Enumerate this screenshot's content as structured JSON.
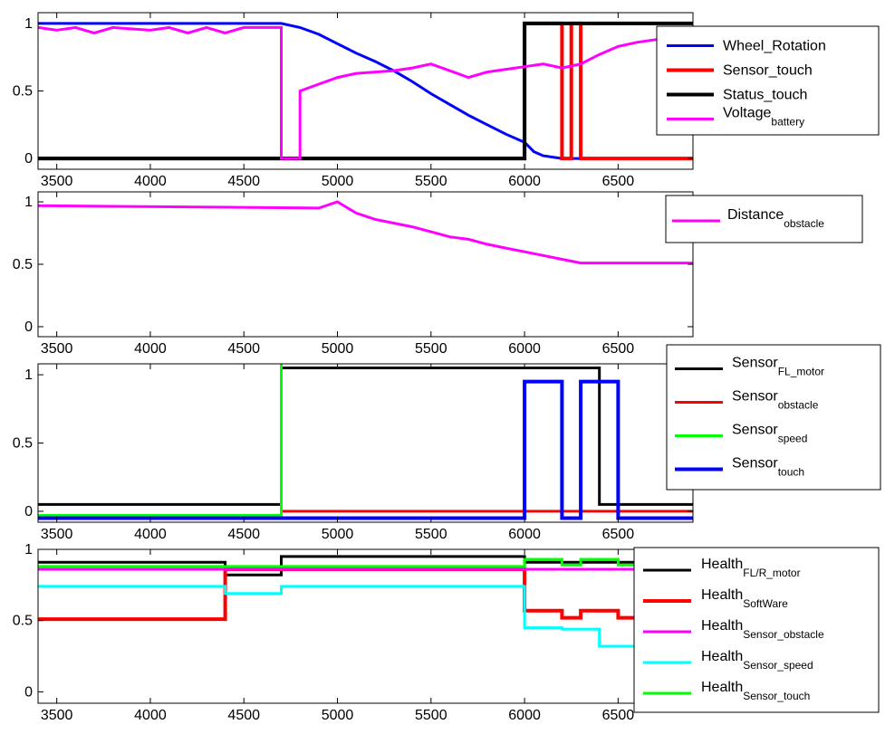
{
  "chart_data": [
    {
      "type": "line",
      "xlim": [
        3400,
        6900
      ],
      "ylim": [
        -0.08,
        1.08
      ],
      "xticks": [
        3500,
        4000,
        4500,
        5000,
        5500,
        6000,
        6500
      ],
      "xtick_labels": [
        "3500",
        "4000",
        "4500",
        "5000",
        "5500",
        "6000",
        "6500"
      ],
      "yticks": [
        0,
        0.5,
        1
      ],
      "ytick_labels": [
        "0",
        "0.5",
        "1"
      ],
      "legend_position": "top-right",
      "series": [
        {
          "name": "Wheel_Rotation",
          "label_main": "Wheel_Rotation",
          "label_sub": "",
          "color": "#0000ff",
          "width": "medium",
          "x": [
            3400,
            4700,
            4800,
            4900,
            5000,
            5100,
            5200,
            5300,
            5400,
            5500,
            5600,
            5700,
            5800,
            5900,
            6000,
            6050,
            6100,
            6200,
            6900
          ],
          "y": [
            1.0,
            1.0,
            0.97,
            0.92,
            0.85,
            0.78,
            0.72,
            0.65,
            0.57,
            0.48,
            0.4,
            0.32,
            0.25,
            0.18,
            0.12,
            0.05,
            0.02,
            0.0,
            0.0
          ]
        },
        {
          "name": "Sensor_touch",
          "label_main": "Sensor_touch",
          "label_sub": "",
          "color": "#ff0000",
          "width": "thick",
          "x": [
            3400,
            6000,
            6000,
            6200,
            6200,
            6250,
            6250,
            6300,
            6300,
            6500,
            6500,
            6900
          ],
          "y": [
            0,
            0,
            1,
            1,
            0,
            0,
            1,
            1,
            0,
            0,
            0,
            0
          ]
        },
        {
          "name": "Status_touch",
          "label_main": "Status_touch",
          "label_sub": "",
          "color": "#000000",
          "width": "thick",
          "x": [
            3400,
            6000,
            6000,
            6900
          ],
          "y": [
            0,
            0,
            1,
            1
          ]
        },
        {
          "name": "Voltage_battery",
          "label_main": "Voltage",
          "label_sub": "battery",
          "color": "#ff00ff",
          "width": "medium",
          "x": [
            3400,
            3500,
            3600,
            3700,
            3800,
            4000,
            4100,
            4200,
            4300,
            4400,
            4500,
            4600,
            4700,
            4700,
            4800,
            4800,
            4900,
            5000,
            5100,
            5200,
            5300,
            5400,
            5500,
            5600,
            5700,
            5800,
            5900,
            6000,
            6100,
            6200,
            6300,
            6400,
            6500,
            6600,
            6700,
            6800,
            6900
          ],
          "y": [
            0.97,
            0.95,
            0.97,
            0.93,
            0.97,
            0.95,
            0.97,
            0.93,
            0.97,
            0.93,
            0.97,
            0.97,
            0.97,
            0.0,
            0.0,
            0.5,
            0.55,
            0.6,
            0.63,
            0.64,
            0.65,
            0.67,
            0.7,
            0.65,
            0.6,
            0.64,
            0.66,
            0.68,
            0.7,
            0.67,
            0.7,
            0.77,
            0.83,
            0.86,
            0.88,
            0.9,
            0.9
          ]
        }
      ]
    },
    {
      "type": "line",
      "xlim": [
        3400,
        6900
      ],
      "ylim": [
        -0.08,
        1.08
      ],
      "xticks": [
        3500,
        4000,
        4500,
        5000,
        5500,
        6000,
        6500
      ],
      "xtick_labels": [
        "3500",
        "4000",
        "4500",
        "5000",
        "5500",
        "6000",
        "6500"
      ],
      "yticks": [
        0,
        0.5,
        1
      ],
      "ytick_labels": [
        "0",
        "0.5",
        "1"
      ],
      "legend_position": "top-right",
      "series": [
        {
          "name": "Distance_obstacle",
          "label_main": "Distance",
          "label_sub": "obstacle",
          "color": "#ff00ff",
          "width": "medium",
          "x": [
            3400,
            4900,
            5000,
            5100,
            5200,
            5300,
            5400,
            5500,
            5600,
            5700,
            5800,
            5900,
            6000,
            6100,
            6200,
            6300,
            6900
          ],
          "y": [
            0.97,
            0.95,
            1.0,
            0.91,
            0.86,
            0.83,
            0.8,
            0.76,
            0.72,
            0.7,
            0.66,
            0.63,
            0.6,
            0.57,
            0.54,
            0.51,
            0.51
          ]
        }
      ]
    },
    {
      "type": "line",
      "xlim": [
        3400,
        6900
      ],
      "ylim": [
        -0.08,
        1.08
      ],
      "xticks": [
        3500,
        4000,
        4500,
        5000,
        5500,
        6000,
        6500
      ],
      "xtick_labels": [
        "3500",
        "4000",
        "4500",
        "5000",
        "5500",
        "6000",
        "6500"
      ],
      "yticks": [
        0,
        0.5,
        1
      ],
      "ytick_labels": [
        "0",
        "0.5",
        "1"
      ],
      "legend_position": "top-right",
      "series": [
        {
          "name": "Sensor_FL_motor",
          "label_main": "Sensor",
          "label_sub": "FL_motor",
          "color": "#000000",
          "width": "medium",
          "x": [
            3400,
            4700,
            4700,
            6400,
            6400,
            6900
          ],
          "y": [
            0.05,
            0.05,
            1.05,
            1.05,
            0.05,
            0.05
          ]
        },
        {
          "name": "Sensor_obstacle",
          "label_main": "Sensor",
          "label_sub": "obstacle",
          "color": "#ff0000",
          "width": "medium",
          "x": [
            3400,
            4700,
            4700,
            6900
          ],
          "y": [
            -0.03,
            -0.03,
            0.0,
            0.0
          ]
        },
        {
          "name": "Sensor_speed",
          "label_main": "Sensor",
          "label_sub": "speed",
          "color": "#00ff00",
          "width": "medium",
          "x": [
            3400,
            4700,
            4700
          ],
          "y": [
            -0.03,
            -0.03,
            1.08
          ]
        },
        {
          "name": "Sensor_touch",
          "label_main": "Sensor",
          "label_sub": "touch",
          "color": "#0000ff",
          "width": "thick",
          "x": [
            3400,
            6000,
            6000,
            6200,
            6200,
            6300,
            6300,
            6500,
            6500,
            6900
          ],
          "y": [
            -0.05,
            -0.05,
            0.95,
            0.95,
            -0.05,
            -0.05,
            0.95,
            0.95,
            -0.05,
            -0.05
          ]
        }
      ]
    },
    {
      "type": "line",
      "xlim": [
        3400,
        6900
      ],
      "ylim": [
        -0.08,
        1.0
      ],
      "xticks": [
        3500,
        4000,
        4500,
        5000,
        5500,
        6000,
        6500
      ],
      "xtick_labels": [
        "3500",
        "4000",
        "4500",
        "5000",
        "5500",
        "6000",
        "6500"
      ],
      "yticks": [
        0,
        0.5,
        1
      ],
      "ytick_labels": [
        "0",
        "0.5",
        "1"
      ],
      "legend_position": "top-right",
      "series": [
        {
          "name": "Health_FL/R_motor",
          "label_main": "Health",
          "label_sub": "FL/R_motor",
          "color": "#000000",
          "width": "medium",
          "x": [
            3400,
            4400,
            4400,
            4700,
            4700,
            6000,
            6000,
            6900
          ],
          "y": [
            0.91,
            0.91,
            0.82,
            0.82,
            0.95,
            0.95,
            0.91,
            0.91
          ]
        },
        {
          "name": "Health_SoftWare",
          "label_main": "Health",
          "label_sub": "SoftWare",
          "color": "#ff0000",
          "width": "thick",
          "x": [
            3400,
            4400,
            4400,
            6000,
            6000,
            6200,
            6200,
            6300,
            6300,
            6500,
            6500,
            6900
          ],
          "y": [
            0.51,
            0.51,
            0.86,
            0.86,
            0.57,
            0.57,
            0.52,
            0.52,
            0.57,
            0.57,
            0.52,
            0.52
          ]
        },
        {
          "name": "Health_Sensor_obstacle",
          "label_main": "Health",
          "label_sub": "Sensor_obstacle",
          "color": "#ff00ff",
          "width": "medium",
          "x": [
            3400,
            6900
          ],
          "y": [
            0.86,
            0.86
          ]
        },
        {
          "name": "Health_Sensor_speed",
          "label_main": "Health",
          "label_sub": "Sensor_speed",
          "color": "#00ffff",
          "width": "medium",
          "x": [
            3400,
            4400,
            4400,
            4700,
            4700,
            6000,
            6000,
            6200,
            6200,
            6400,
            6400,
            6900
          ],
          "y": [
            0.74,
            0.74,
            0.69,
            0.69,
            0.74,
            0.74,
            0.45,
            0.45,
            0.44,
            0.44,
            0.32,
            0.32
          ]
        },
        {
          "name": "Health_Sensor_touch",
          "label_main": "Health",
          "label_sub": "Sensor_touch",
          "color": "#00ff00",
          "width": "medium",
          "x": [
            3400,
            6000,
            6000,
            6200,
            6200,
            6300,
            6300,
            6500,
            6500,
            6900
          ],
          "y": [
            0.88,
            0.88,
            0.93,
            0.93,
            0.89,
            0.89,
            0.93,
            0.93,
            0.89,
            0.89
          ]
        }
      ]
    }
  ]
}
